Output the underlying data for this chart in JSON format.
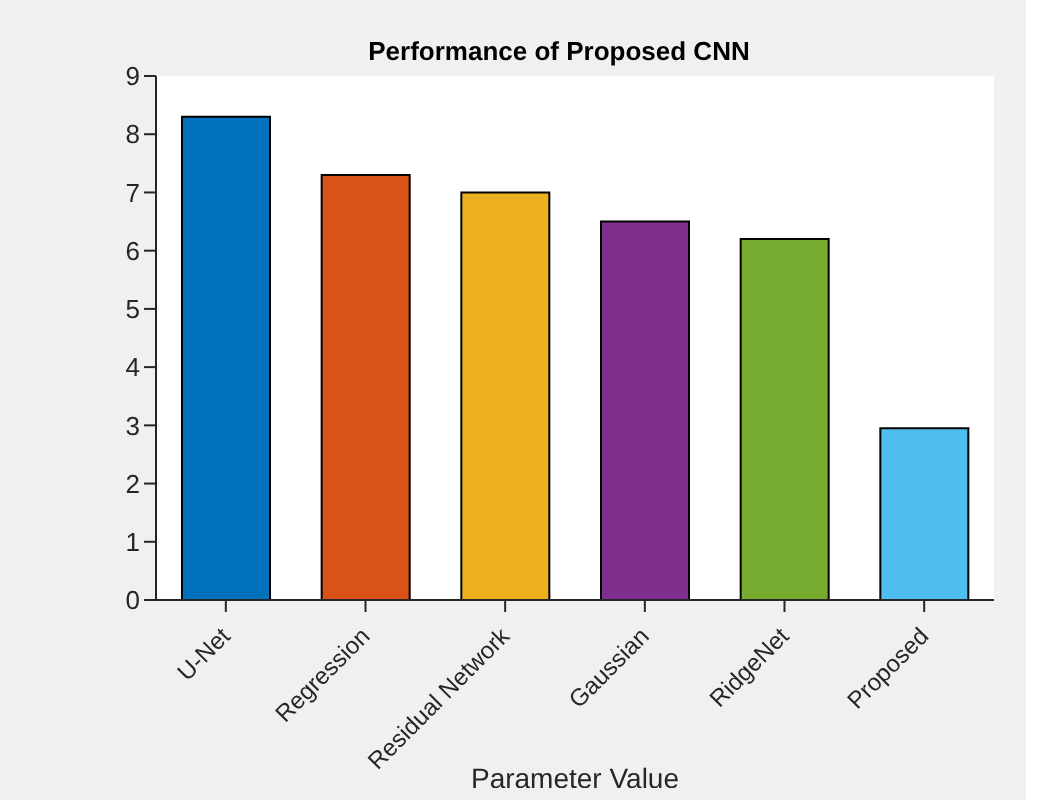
{
  "chart_data": {
    "type": "bar",
    "title": "Performance of Proposed CNN",
    "xlabel": "Parameter Value",
    "categories": [
      "U-Net",
      "Regression",
      "Residual Network",
      "Gaussian",
      "RidgeNet",
      "Proposed"
    ],
    "values": [
      8.3,
      7.3,
      7.0,
      6.5,
      6.2,
      2.95
    ],
    "colors": [
      "#0072bd",
      "#d95319",
      "#edb120",
      "#7e2f8e",
      "#77ac30",
      "#4dbeee"
    ],
    "ylim": [
      0,
      9
    ],
    "yticks": [
      0,
      1,
      2,
      3,
      4,
      5,
      6,
      7,
      8,
      9
    ],
    "grid": false,
    "legend": false
  }
}
